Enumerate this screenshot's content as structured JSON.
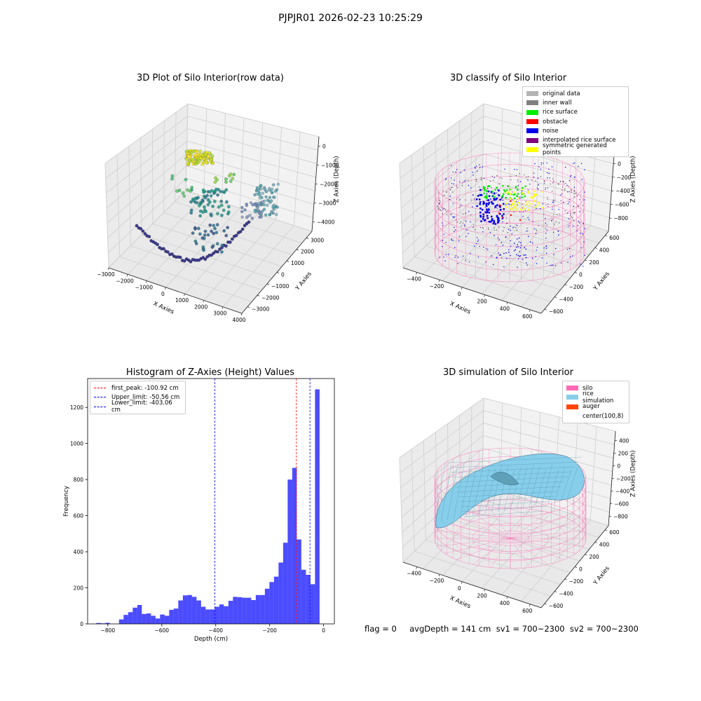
{
  "suptitle": "PJPJR01 2026-02-23 10:25:29",
  "footer": "flag = 0     avgDepth = 141 cm  sv1 = 700~2300  sv2 = 700~2300",
  "chart_data": [
    {
      "type": "scatter",
      "projection": "3d",
      "title": "3D Plot of Silo Interior(row data)",
      "xlabel": "X Axies",
      "ylabel": "Y Axies",
      "zlabel": "Z Axies (Depth)",
      "x_ticks": [
        "−3000",
        "−2000",
        "−1000",
        "0",
        "1000",
        "2000",
        "3000",
        "4000"
      ],
      "y_ticks": [
        "−3000",
        "−2000",
        "−1000",
        "0",
        "1000",
        "2000",
        "3000"
      ],
      "z_ticks": [
        "0",
        "−1000",
        "−2000",
        "−3000",
        "−4000"
      ],
      "colormap": "viridis (colored by depth)",
      "grid": true
    },
    {
      "type": "scatter",
      "projection": "3d",
      "title": "3D classify of Silo Interior",
      "xlabel": "X Axies",
      "ylabel": "Y Axies",
      "zlabel": "Z Axies (Depth)",
      "x_ticks": [
        "−400",
        "−200",
        "0",
        "200",
        "400",
        "600"
      ],
      "y_ticks": [
        "−600",
        "−400",
        "−200",
        "0",
        "200",
        "400",
        "600"
      ],
      "z_ticks": [
        "200",
        "0",
        "−200",
        "−400",
        "−600",
        "−800"
      ],
      "legend": [
        {
          "label": "original data",
          "color": "#b4b4b4"
        },
        {
          "label": "inner wall",
          "color": "#808080"
        },
        {
          "label": "rice surface",
          "color": "#00ee00"
        },
        {
          "label": "obstacle",
          "color": "#ff0000"
        },
        {
          "label": "noise",
          "color": "#0000ee"
        },
        {
          "label": "interpolated rice surface",
          "color": "#800080"
        },
        {
          "label": "symmetric generated points",
          "color": "#ffff00"
        }
      ],
      "legend_loc": "upper right",
      "grid": true
    },
    {
      "type": "bar",
      "title": "Histogram of Z-Axies (Height) Values",
      "xlabel": "Depth (cm)",
      "ylabel": "Frequency",
      "xlim": [
        -875,
        40
      ],
      "ylim": [
        0,
        1360
      ],
      "x_ticks": [
        -800,
        -600,
        -400,
        -200,
        0
      ],
      "x_tick_labels": [
        "−800",
        "−600",
        "−400",
        "−200",
        "0"
      ],
      "y_ticks": [
        0,
        200,
        400,
        600,
        800,
        1000,
        1200
      ],
      "bar_color": "#0000ff",
      "bin_width": 16.9,
      "bin_starts": [
        -843,
        -826.1,
        -809.2,
        -792.3,
        -775.4,
        -758.5,
        -741.6,
        -724.7,
        -707.8,
        -690.9,
        -674,
        -657.1,
        -640.2,
        -623.3,
        -606.4,
        -589.5,
        -572.6,
        -555.7,
        -538.8,
        -521.9,
        -505,
        -488.1,
        -471.2,
        -454.3,
        -437.4,
        -420.5,
        -403.6,
        -386.7,
        -369.8,
        -352.9,
        -336,
        -319.1,
        -302.2,
        -285.3,
        -268.4,
        -251.5,
        -234.6,
        -217.7,
        -200.8,
        -183.9,
        -167,
        -150.1,
        -133.2,
        -116.3,
        -99.4,
        -82.5,
        -65.6,
        -48.7,
        -31.8,
        -14.9
      ],
      "values": [
        5,
        3,
        6,
        0,
        0,
        25,
        50,
        65,
        90,
        105,
        55,
        58,
        45,
        30,
        52,
        45,
        78,
        85,
        130,
        158,
        160,
        150,
        130,
        95,
        80,
        80,
        95,
        108,
        98,
        128,
        150,
        148,
        145,
        145,
        132,
        160,
        160,
        195,
        232,
        262,
        340,
        450,
        800,
        865,
        468,
        300,
        272,
        220,
        1300,
        0
      ],
      "vlines": [
        {
          "label": "first_peak: -100.92 cm",
          "x": -100.92,
          "color": "#ff0000",
          "style": "dashed"
        },
        {
          "label": "Upper_limit: -50.56 cm",
          "x": -50.56,
          "color": "#0000ff",
          "style": "dashed"
        },
        {
          "label": "Lower_limit: -403.06 cm",
          "x": -403.06,
          "color": "#0000ff",
          "style": "dashed"
        }
      ],
      "legend_loc": "upper left",
      "grid": false
    },
    {
      "type": "surface",
      "projection": "3d",
      "title": "3D simulation of Silo Interior",
      "xlabel": "X Axies",
      "ylabel": "Y Axies",
      "zlabel": "Z Axies (Depth)",
      "x_ticks": [
        "−400",
        "−200",
        "0",
        "200",
        "400",
        "600"
      ],
      "y_ticks": [
        "−600",
        "−400",
        "−200",
        "0",
        "200",
        "400",
        "600"
      ],
      "z_ticks": [
        "400",
        "200",
        "0",
        "−200",
        "−400",
        "−600",
        "−800"
      ],
      "legend": [
        {
          "label": "silo",
          "color": "#ff69b4"
        },
        {
          "label": "rice simulation",
          "color": "#87ceeb"
        },
        {
          "label": "auger",
          "color": "#ff4500"
        },
        {
          "label": "center(100,8)",
          "color": ""
        }
      ],
      "legend_loc": "upper right",
      "grid": true
    }
  ]
}
